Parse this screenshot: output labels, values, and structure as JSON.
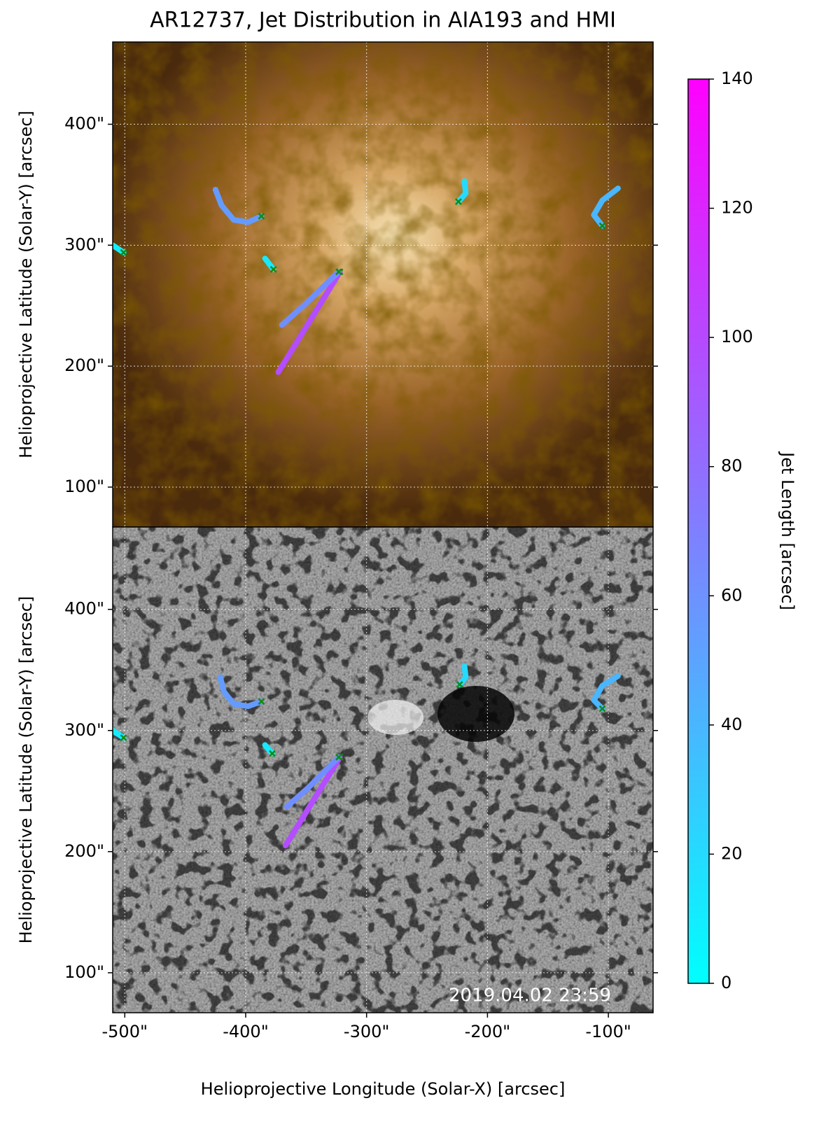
{
  "title": "AR12737, Jet Distribution in AIA193 and HMI",
  "xlabel": "Helioprojective Longitude (Solar-X) [arcsec]",
  "chart_data": [
    {
      "type": "map",
      "background": "aia193",
      "ylabel": "Helioprojective Latitude (Solar-Y) [arcsec]",
      "xlim": [
        -510,
        -63
      ],
      "ylim": [
        67,
        468
      ],
      "grid": true,
      "xticks": [
        {
          "value": -500,
          "label": "-500\""
        },
        {
          "value": -400,
          "label": "-400\""
        },
        {
          "value": -300,
          "label": "-300\""
        },
        {
          "value": -200,
          "label": "-200\""
        },
        {
          "value": -100,
          "label": "-100\""
        }
      ],
      "yticks": [
        {
          "value": 100,
          "label": "100\""
        },
        {
          "value": 200,
          "label": "200\""
        },
        {
          "value": 300,
          "label": "300\""
        },
        {
          "value": 400,
          "label": "400\""
        }
      ],
      "jets": [
        {
          "x": [
            -387,
            -398,
            -410,
            -420,
            -425
          ],
          "y": [
            324,
            319,
            321,
            333,
            346
          ],
          "length": 55
        },
        {
          "x": [
            -322,
            -373
          ],
          "y": [
            278,
            195
          ],
          "length": 98
        },
        {
          "x": [
            -323,
            -350,
            -370
          ],
          "y": [
            278,
            252,
            234
          ],
          "length": 62
        },
        {
          "x": [
            -377,
            -384
          ],
          "y": [
            280,
            289
          ],
          "length": 12
        },
        {
          "x": [
            -501,
            -510
          ],
          "y": [
            294,
            300
          ],
          "length": 10
        },
        {
          "x": [
            -224,
            -218,
            -219
          ],
          "y": [
            336,
            343,
            353
          ],
          "length": 20
        },
        {
          "x": [
            -105,
            -112,
            -105,
            -92
          ],
          "y": [
            316,
            325,
            337,
            347
          ],
          "length": 40
        }
      ]
    },
    {
      "type": "map",
      "background": "hmi",
      "ylabel": "Helioprojective Latitude (Solar-Y) [arcsec]",
      "annotation": "2019.04.02 23:59",
      "xlim": [
        -510,
        -63
      ],
      "ylim": [
        67,
        468
      ],
      "grid": true,
      "xticks": [
        {
          "value": -500,
          "label": "-500\""
        },
        {
          "value": -400,
          "label": "-400\""
        },
        {
          "value": -300,
          "label": "-300\""
        },
        {
          "value": -200,
          "label": "-200\""
        },
        {
          "value": -100,
          "label": "-100\""
        }
      ],
      "yticks": [
        {
          "value": 100,
          "label": "100\""
        },
        {
          "value": 200,
          "label": "200\""
        },
        {
          "value": 300,
          "label": "300\""
        },
        {
          "value": 400,
          "label": "400\""
        }
      ],
      "jets": [
        {
          "x": [
            -387,
            -398,
            -410,
            -418,
            -421
          ],
          "y": [
            324,
            320,
            322,
            332,
            344
          ],
          "length": 55
        },
        {
          "x": [
            -322,
            -367
          ],
          "y": [
            278,
            205
          ],
          "length": 98
        },
        {
          "x": [
            -323,
            -348,
            -366
          ],
          "y": [
            278,
            253,
            237
          ],
          "length": 62
        },
        {
          "x": [
            -378,
            -384
          ],
          "y": [
            281,
            288
          ],
          "length": 12
        },
        {
          "x": [
            -501,
            -510
          ],
          "y": [
            294,
            300
          ],
          "length": 10
        },
        {
          "x": [
            -223,
            -218,
            -219
          ],
          "y": [
            338,
            344,
            353
          ],
          "length": 20
        },
        {
          "x": [
            -105,
            -112,
            -105,
            -92
          ],
          "y": [
            318,
            325,
            337,
            345
          ],
          "length": 40
        }
      ]
    },
    {
      "type": "colorbar",
      "label": "Jet Length [arcsec]",
      "lim": [
        0,
        140
      ],
      "ticks": [
        0,
        20,
        40,
        60,
        80,
        100,
        120,
        140
      ],
      "colors": [
        "#00ffff",
        "#ff00ff"
      ]
    }
  ]
}
